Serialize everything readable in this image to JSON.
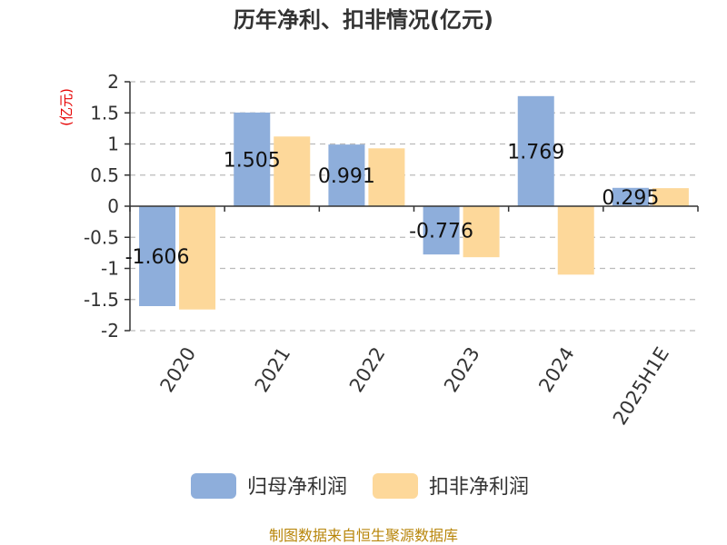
{
  "chart_data": {
    "type": "bar",
    "title": "历年净利、扣非情况(亿元)",
    "ylabel": "(亿元)",
    "xlabel": "",
    "categories": [
      "2020",
      "2021",
      "2022",
      "2023",
      "2024",
      "2025H1E"
    ],
    "series": [
      {
        "name": "归母净利润",
        "values": [
          -1.606,
          1.505,
          0.991,
          -0.776,
          1.769,
          0.295
        ],
        "color": "#8eaedb",
        "labels": [
          "-1.606",
          "1.505",
          "0.991",
          "-0.776",
          "1.769",
          "0.295"
        ]
      },
      {
        "name": "扣非净利润",
        "values": [
          -1.66,
          1.12,
          0.93,
          -0.82,
          -1.1,
          0.29
        ],
        "color": "#fdd89a"
      }
    ],
    "ylim": [
      -2,
      2
    ],
    "yticks": [
      2,
      1.5,
      1,
      0.5,
      0,
      -0.5,
      -1,
      -1.5,
      -2
    ],
    "grid": true,
    "legend": "bottom",
    "source_note": "制图数据来自恒生聚源数据库"
  }
}
